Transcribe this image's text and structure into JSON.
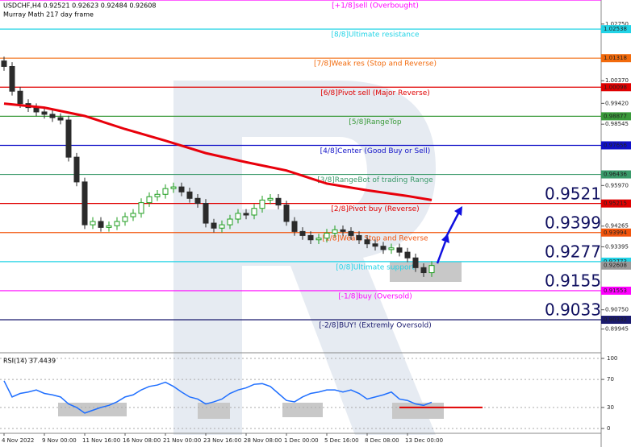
{
  "chart_data": [
    {
      "type": "candlestick",
      "title": "USDCHF,H4  0.92521 0.92623 0.92484 0.92608",
      "subtitle": "Murray Math 217 day frame",
      "open": [
        1.012,
        1.0097,
        0.9993,
        0.9941,
        0.9924,
        0.9906,
        0.9896,
        0.9882,
        0.9872,
        0.9716,
        0.9612,
        0.9432,
        0.9446,
        0.9421,
        0.9428,
        0.9446,
        0.9466,
        0.948,
        0.9525,
        0.955,
        0.956,
        0.9584,
        0.9591,
        0.957,
        0.9543,
        0.9522,
        0.9439,
        0.9418,
        0.9432,
        0.9456,
        0.948,
        0.9473,
        0.9501,
        0.9536,
        0.9543,
        0.9515,
        0.9446,
        0.9404,
        0.9387,
        0.9369,
        0.9376,
        0.9397,
        0.9411,
        0.9404,
        0.9387,
        0.9369,
        0.9352,
        0.9342,
        0.9328,
        0.9335,
        0.9317,
        0.9293,
        0.9252,
        0.9231
      ],
      "high": [
        1.0138,
        1.0115,
        1.0011,
        0.9959,
        0.9942,
        0.9924,
        0.9914,
        0.99,
        0.989,
        0.9734,
        0.963,
        0.9464,
        0.9464,
        0.9446,
        0.9464,
        0.9484,
        0.9498,
        0.9543,
        0.9568,
        0.9578,
        0.9602,
        0.9609,
        0.9609,
        0.9588,
        0.9561,
        0.954,
        0.9457,
        0.945,
        0.9474,
        0.9498,
        0.9498,
        0.9519,
        0.9554,
        0.9561,
        0.9561,
        0.9533,
        0.9464,
        0.9422,
        0.9405,
        0.9394,
        0.9415,
        0.9429,
        0.9429,
        0.9422,
        0.9405,
        0.9387,
        0.937,
        0.936,
        0.9353,
        0.9353,
        0.9335,
        0.9311,
        0.927,
        0.9279
      ],
      "low": [
        1.0079,
        0.9975,
        0.9923,
        0.9906,
        0.9888,
        0.9878,
        0.9864,
        0.9854,
        0.9698,
        0.9594,
        0.9414,
        0.9414,
        0.9403,
        0.9403,
        0.941,
        0.9428,
        0.9448,
        0.9462,
        0.9507,
        0.9532,
        0.9542,
        0.9566,
        0.9552,
        0.9525,
        0.9504,
        0.9421,
        0.94,
        0.94,
        0.9414,
        0.9438,
        0.9455,
        0.9455,
        0.9483,
        0.9518,
        0.9497,
        0.9428,
        0.9386,
        0.9369,
        0.9351,
        0.9351,
        0.9358,
        0.9379,
        0.9386,
        0.9369,
        0.9351,
        0.9334,
        0.9324,
        0.931,
        0.931,
        0.9299,
        0.9275,
        0.9234,
        0.9213,
        0.9213
      ],
      "close": [
        1.0097,
        0.9993,
        0.9941,
        0.9924,
        0.9906,
        0.9896,
        0.9882,
        0.9872,
        0.9716,
        0.9612,
        0.9432,
        0.9446,
        0.9421,
        0.9428,
        0.9446,
        0.9466,
        0.948,
        0.9525,
        0.955,
        0.956,
        0.9584,
        0.9591,
        0.957,
        0.9543,
        0.9522,
        0.9439,
        0.9418,
        0.9432,
        0.9456,
        0.948,
        0.9473,
        0.9501,
        0.9536,
        0.9543,
        0.9515,
        0.9446,
        0.9404,
        0.9387,
        0.9369,
        0.9376,
        0.9397,
        0.9411,
        0.9404,
        0.9387,
        0.9369,
        0.9352,
        0.9342,
        0.9328,
        0.9335,
        0.9317,
        0.9293,
        0.9252,
        0.9231,
        0.9261
      ],
      "up_color": "#1f9e1f",
      "down_color": "#2b2b2b",
      "ma": {
        "x": [
          0,
          5,
          10,
          15,
          20,
          25,
          30,
          35,
          40,
          45,
          50,
          53
        ],
        "values": [
          0.9941,
          0.9924,
          0.9889,
          0.9834,
          0.9785,
          0.9733,
          0.9695,
          0.966,
          0.9605,
          0.9577,
          0.9553,
          0.9536
        ],
        "color": "#e8000b"
      },
      "levels": [
        {
          "label": "[+1/8]sell (Overbought)",
          "value": 1.03759,
          "color": "#ff00ff"
        },
        {
          "label": "[8/8]Ultimate resistance",
          "value": 1.02538,
          "color": "#22d3e6"
        },
        {
          "label": "[7/8]Weak res (Stop and Reverse)",
          "value": 1.01318,
          "color": "#f26a0c"
        },
        {
          "label": "[6/8]Pivot sell (Major Reverse)",
          "value": 1.00098,
          "color": "#e00000"
        },
        {
          "label": "[5/8]RangeTop",
          "value": 0.98877,
          "color": "#3a9a3a"
        },
        {
          "label": "[4/8]Center (Good Buy or Sell)",
          "value": 0.97656,
          "color": "#1010c8"
        },
        {
          "label": "[3/8]RangeBot of trading Range",
          "value": 0.96436,
          "color": "#3a9a6a"
        },
        {
          "label": "[2/8]Pivot buy (Reverse)",
          "value": 0.95215,
          "color": "#e00000"
        },
        {
          "label": "[1/8]Weak, Stop and Reverse",
          "value": 0.93994,
          "color": "#f2540c"
        },
        {
          "label": "[0/8]Ultimate support",
          "value": 0.92773,
          "color": "#22d3e6"
        },
        {
          "label": "[-1/8]buy (Oversold)",
          "value": 0.91553,
          "color": "#ff00ff"
        },
        {
          "label": "[-2/8]BUY! (Extremly Oversold)",
          "value": 0.90332,
          "color": "#1a1a6e"
        }
      ],
      "annotations": [
        0.9521,
        0.9399,
        0.9277,
        0.9155,
        0.9033
      ],
      "last_price": 0.92608,
      "ylim": [
        0.8898,
        1.0376
      ],
      "yticks": [
        {
          "value": 1.0275,
          "label": "1.02750"
        },
        {
          "value": 1.0037,
          "label": "1.00370"
        },
        {
          "value": 0.9942,
          "label": "0.99420"
        },
        0.98545,
        {
          "value": 0.9597,
          "label": "0.95970"
        },
        0.94265,
        0.93395,
        {
          "value": 0.9075,
          "label": "0.90750"
        },
        0.89945
      ]
    },
    {
      "type": "line",
      "title": "RSI(14) 37.4439",
      "categories": [
        "4 Nov 2022",
        null,
        null,
        null,
        null,
        "9 Nov 00:00",
        null,
        null,
        null,
        null,
        "11 Nov 16:00",
        null,
        null,
        null,
        null,
        "16 Nov 08:00",
        null,
        null,
        null,
        null,
        "21 Nov 00:00",
        null,
        null,
        null,
        null,
        "23 Nov 16:00",
        null,
        null,
        null,
        null,
        "28 Nov 08:00",
        null,
        null,
        null,
        null,
        "1 Dec 00:00",
        null,
        null,
        null,
        null,
        "5 Dec 16:00",
        null,
        null,
        null,
        null,
        "8 Dec 08:00",
        null,
        null,
        null,
        null,
        "13 Dec 00:00",
        null,
        null,
        null
      ],
      "values": [
        68,
        45,
        50,
        52,
        55,
        50,
        48,
        45,
        35,
        30,
        22,
        26,
        30,
        33,
        38,
        45,
        48,
        55,
        60,
        62,
        66,
        60,
        52,
        45,
        42,
        35,
        38,
        42,
        50,
        55,
        58,
        63,
        64,
        60,
        50,
        40,
        38,
        45,
        50,
        52,
        55,
        55,
        52,
        55,
        50,
        42,
        45,
        48,
        52,
        42,
        40,
        35,
        33,
        37.4439
      ],
      "color": "#1f6fff",
      "signal": {
        "value": 30,
        "color": "#e00000"
      },
      "ylim": [
        0,
        100
      ],
      "yticks": [
        100,
        70,
        30,
        0
      ],
      "grid": true
    }
  ]
}
